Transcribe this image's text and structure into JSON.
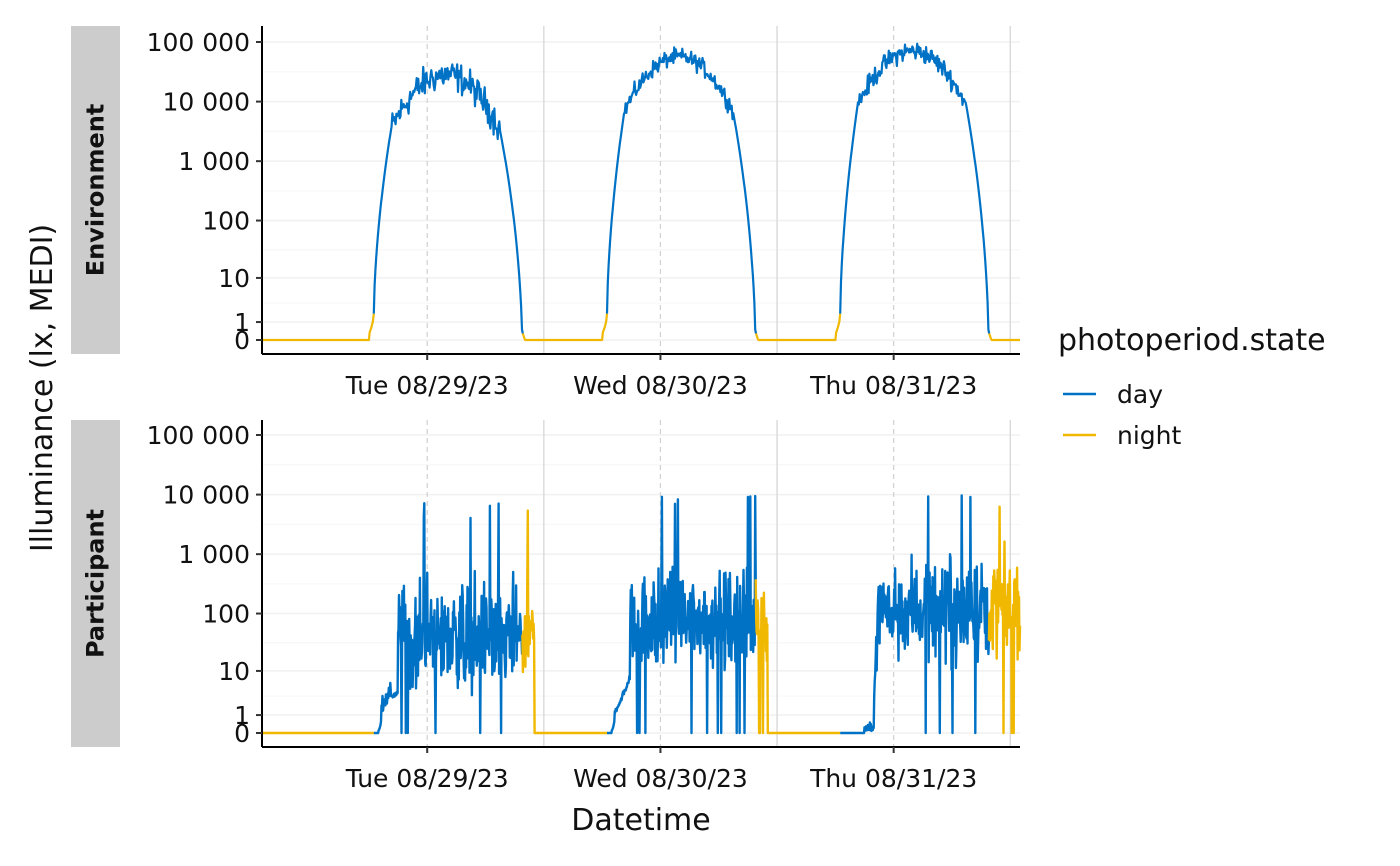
{
  "chart_data": {
    "type": "line",
    "xlabel": "Datetime",
    "ylabel": "Illuminance (lx, MEDI)",
    "y_scale": "symlog",
    "y_ticks": [
      0,
      1,
      10,
      100,
      1000,
      10000,
      100000
    ],
    "y_tick_labels": [
      "0",
      "1",
      "10",
      "100",
      "1 000",
      "10 000",
      "100 000"
    ],
    "x_range": [
      "2023-08-28T19:00",
      "2023-09-01T01:00"
    ],
    "x_ticks": [
      "2023-08-29T12:00",
      "2023-08-30T12:00",
      "2023-08-31T12:00"
    ],
    "x_tick_labels": [
      "Tue 08/29/23",
      "Wed 08/30/23",
      "Thu 08/31/23"
    ],
    "day_boundaries": [
      "2023-08-30T00:00",
      "2023-08-31T00:00",
      "2023-09-01T00:00"
    ],
    "legend": {
      "title": "photoperiod.state",
      "placement": "right",
      "entries": [
        {
          "label": "day",
          "color": "#0072C6"
        },
        {
          "label": "night",
          "color": "#F0B800"
        }
      ]
    },
    "panels": [
      {
        "label": "Environment",
        "days": [
          {
            "sunrise": "2023-08-29T06:30",
            "sunset": "2023-08-29T21:45",
            "peak_log": 4.45,
            "noise": 0.22
          },
          {
            "sunrise": "2023-08-30T06:30",
            "sunset": "2023-08-30T21:45",
            "peak_log": 4.75,
            "noise": 0.12
          },
          {
            "sunrise": "2023-08-31T06:30",
            "sunset": "2023-08-31T21:45",
            "peak_log": 4.85,
            "noise": 0.14
          }
        ]
      },
      {
        "label": "Participant",
        "days": [
          {
            "wake": "2023-08-29T07:00",
            "sunset": "2023-08-29T21:45",
            "sleep": "2023-08-29T23:00",
            "max": 7500
          },
          {
            "wake": "2023-08-30T07:00",
            "sunset": "2023-08-30T21:45",
            "sleep": "2023-08-30T23:00",
            "max": 11000
          },
          {
            "wake": "2023-08-31T09:00",
            "sunset": "2023-08-31T21:45",
            "sleep": "2023-09-01T01:00",
            "max": 10000
          }
        ]
      }
    ]
  }
}
